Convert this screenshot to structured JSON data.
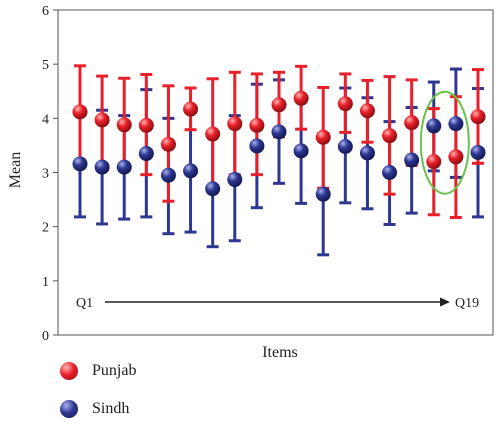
{
  "chart_data": {
    "type": "scatter",
    "variant": "error-bars",
    "xlabel": "Items",
    "ylabel": "Mean",
    "ylim": [
      0,
      6
    ],
    "yticks": [
      0,
      1,
      2,
      3,
      4,
      5,
      6
    ],
    "grid": false,
    "legend_placement": "bottom-left, outside plot",
    "x": [
      1,
      2,
      3,
      4,
      5,
      6,
      7,
      8,
      9,
      10,
      11,
      12,
      13,
      14,
      15,
      16,
      17,
      18,
      19
    ],
    "annotations": [
      {
        "text": "Q1",
        "position": "bottom-left, start of arrow"
      },
      {
        "text": "Q19",
        "position": "bottom-right, end of arrow"
      },
      {
        "shape": "green ellipse",
        "items": [
          17,
          18
        ]
      }
    ],
    "series": [
      {
        "name": "Punjab",
        "color": "#e8202a",
        "mean": [
          4.12,
          3.97,
          3.88,
          3.87,
          3.52,
          4.17,
          3.71,
          3.9,
          3.87,
          4.25,
          4.37,
          3.65,
          4.27,
          4.14,
          3.68,
          3.92,
          3.2,
          3.29,
          4.03
        ],
        "upper": [
          4.97,
          4.78,
          4.74,
          4.81,
          4.6,
          4.56,
          4.73,
          4.85,
          4.82,
          4.85,
          4.96,
          4.57,
          4.82,
          4.7,
          4.77,
          4.71,
          4.18,
          4.4,
          4.9
        ],
        "lower": [
          3.2,
          3.1,
          3.05,
          2.96,
          2.47,
          3.79,
          2.7,
          2.96,
          2.96,
          3.66,
          3.8,
          2.71,
          3.74,
          3.56,
          2.6,
          3.13,
          2.22,
          2.17,
          3.17
        ]
      },
      {
        "name": "Sindh",
        "color": "#2e3790",
        "mean": [
          3.16,
          3.1,
          3.1,
          3.35,
          2.95,
          3.03,
          2.7,
          2.87,
          3.49,
          3.75,
          3.4,
          2.6,
          3.48,
          3.36,
          3.0,
          3.23,
          3.86,
          3.9,
          3.37
        ],
        "upper": [
          4.12,
          4.15,
          4.05,
          4.53,
          4.0,
          4.15,
          3.73,
          4.05,
          4.63,
          4.71,
          4.37,
          3.72,
          4.56,
          4.38,
          3.94,
          4.2,
          4.67,
          4.91,
          4.55
        ],
        "lower": [
          2.18,
          2.05,
          2.14,
          2.18,
          1.87,
          1.9,
          1.63,
          1.74,
          2.35,
          2.8,
          2.43,
          1.48,
          2.44,
          2.33,
          2.04,
          2.25,
          3.03,
          2.91,
          2.18
        ]
      }
    ]
  }
}
